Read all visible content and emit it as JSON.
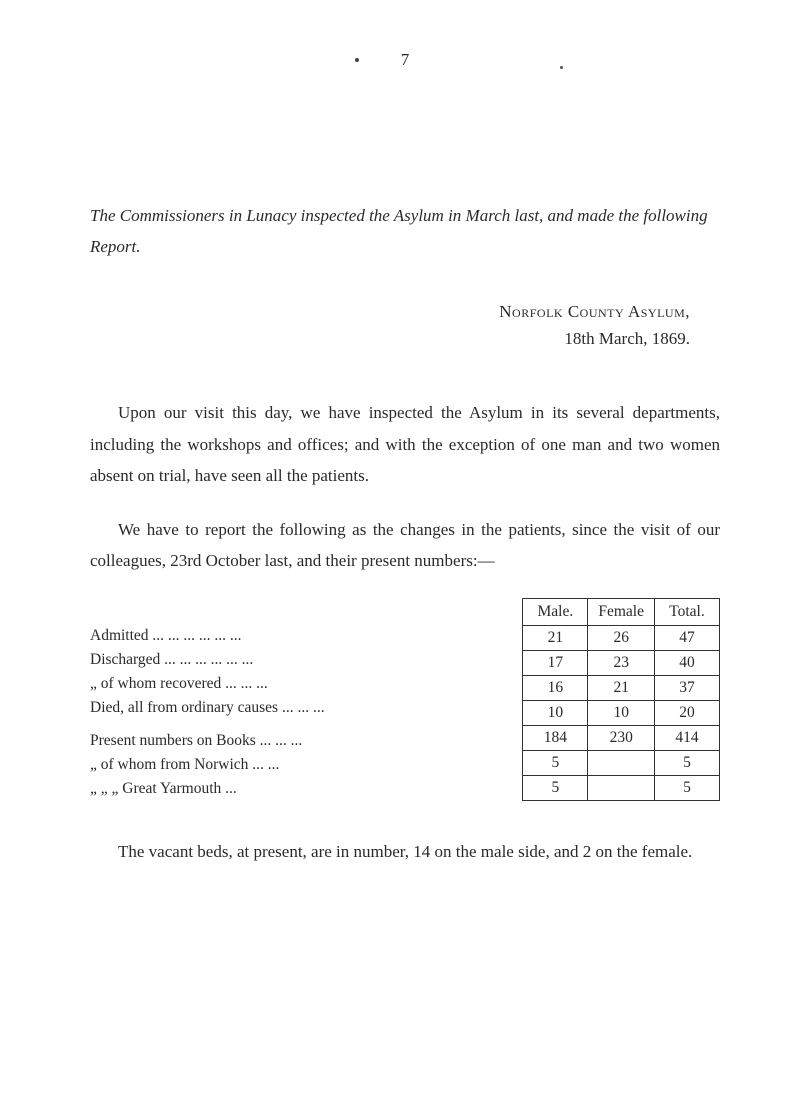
{
  "page_number": "7",
  "intro": "The Commissioners in Lunacy inspected the Asylum in March last, and made the following Report.",
  "header": {
    "title": "Norfolk County Asylum,",
    "date": "18th March, 1869."
  },
  "para1": "Upon our visit this day, we have inspected the Asylum in its several departments, including the workshops and offices; and with the exception of one man and two women absent on trial, have seen all the patients.",
  "para2": "We have to report the following as the changes in the patients, since the visit of our colleagues, 23rd October last, and their present numbers:—",
  "table": {
    "headers": [
      "Male.",
      "Female",
      "Total."
    ],
    "row_labels": [
      "Admitted ...   ...   ...   ...   ...   ...",
      "Discharged ...   ...   ...   ...   ...   ...",
      "   „      of whom recovered   ...   ...   ...",
      "Died, all from ordinary causes   ...   ...   ...",
      "Present numbers on Books   ...   ...   ...",
      "   „   of whom from Norwich   ...   ...",
      "   „    „    „    Great Yarmouth   ..."
    ],
    "section1": [
      [
        "21",
        "26",
        "47"
      ],
      [
        "17",
        "23",
        "40"
      ],
      [
        "16",
        "21",
        "37"
      ],
      [
        "10",
        "10",
        "20"
      ]
    ],
    "section2": [
      [
        "184",
        "230",
        "414"
      ],
      [
        "5",
        "",
        "5"
      ],
      [
        "5",
        "",
        "5"
      ]
    ]
  },
  "closing": "The vacant beds, at present, are in number, 14 on the male side, and 2 on the female."
}
